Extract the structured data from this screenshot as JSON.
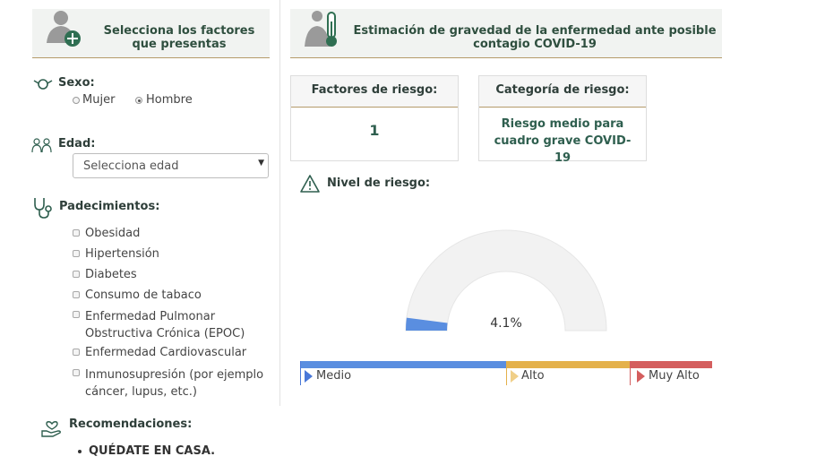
{
  "left_panel": {
    "header_title": "Selecciona los factores que presentas",
    "sex": {
      "label": "Sexo:",
      "options": [
        "Mujer",
        "Hombre"
      ],
      "selected": "Hombre"
    },
    "age": {
      "label": "Edad:",
      "select_value": "Selecciona edad"
    },
    "conditions": {
      "label": "Padecimientos:",
      "items": [
        "Obesidad",
        "Hipertensión",
        "Diabetes",
        "Consumo de tabaco",
        "Enfermedad Pulmonar Obstructiva Crónica (EPOC)",
        "Enfermedad Cardiovascular",
        "Inmunosupresión (por ejemplo cáncer, lupus, etc.)"
      ]
    },
    "recommendations": {
      "label": "Recomendaciones:",
      "items": [
        "QUÉDATE EN CASA."
      ]
    }
  },
  "right_panel": {
    "header_title": "Estimación de gravedad de la enfermedad ante posible contagio COVID-19",
    "risk_factors": {
      "label": "Factores de riesgo:",
      "value": "1"
    },
    "risk_category": {
      "label": "Categoría de riesgo:",
      "value": "Riesgo medio para cuadro grave COVID-19"
    },
    "risk_level": {
      "label": "Nivel de riesgo:",
      "gauge_percent": 4.1,
      "gauge_text": "4.1%",
      "scale": [
        {
          "label": "Medio",
          "color": "#5a8ee0"
        },
        {
          "label": "Alto",
          "color": "#e4b14b"
        },
        {
          "label": "Muy Alto",
          "color": "#d45e5e"
        }
      ]
    }
  },
  "colors": {
    "header_bg": "#f1f3f1",
    "gold_line": "#b59b6a",
    "dark_green": "#2f5f4f",
    "gauge_fill": "#5a8ee0",
    "gauge_track": "#f2f2f2"
  }
}
